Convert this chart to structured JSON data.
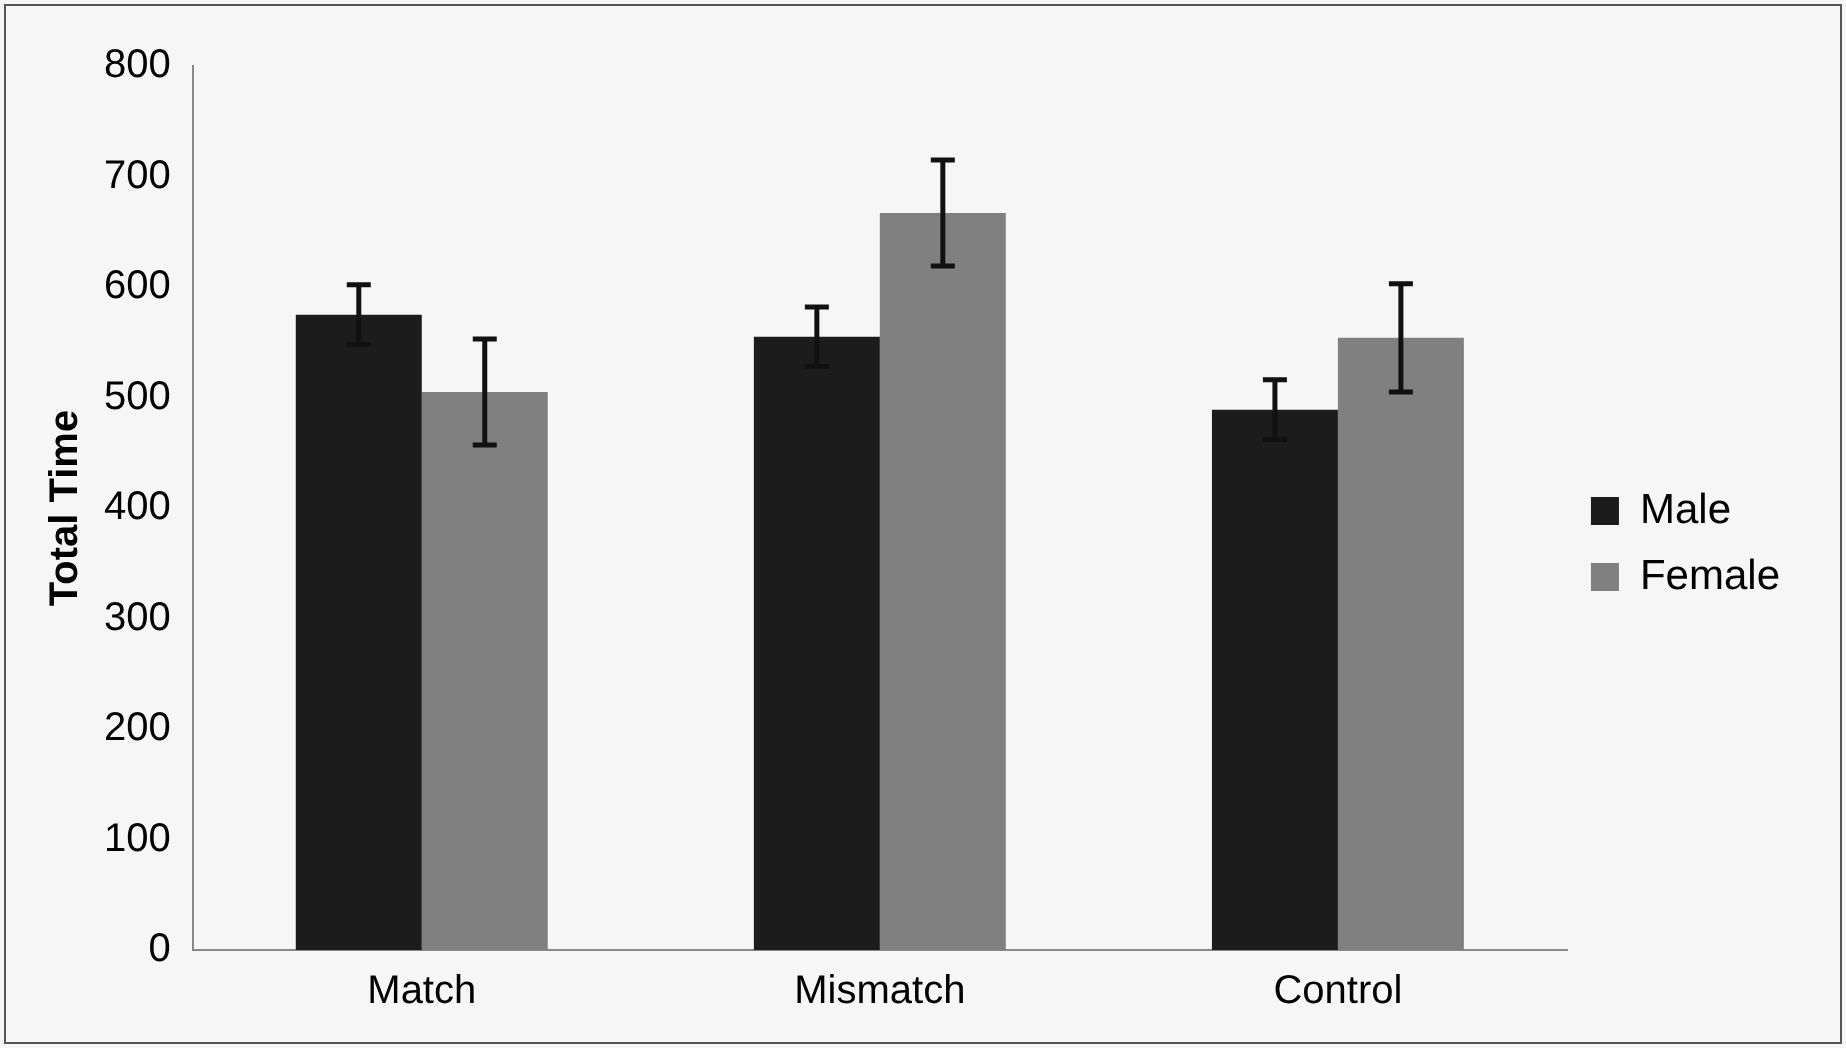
{
  "chart_data": {
    "type": "bar",
    "ylabel": "Total Time",
    "categories": [
      "Match",
      "Mismatch",
      "Control"
    ],
    "series": [
      {
        "name": "Male",
        "color": "#1c1c1c",
        "values": [
          575,
          555,
          489
        ],
        "errors": [
          27,
          27,
          27
        ]
      },
      {
        "name": "Female",
        "color": "#808080",
        "values": [
          505,
          667,
          554
        ],
        "errors": [
          48,
          48,
          49
        ]
      }
    ],
    "ylim": [
      0,
      800
    ],
    "yticks": [
      0,
      100,
      200,
      300,
      400,
      500,
      600,
      700,
      800
    ],
    "grid": false,
    "legend": "right"
  }
}
